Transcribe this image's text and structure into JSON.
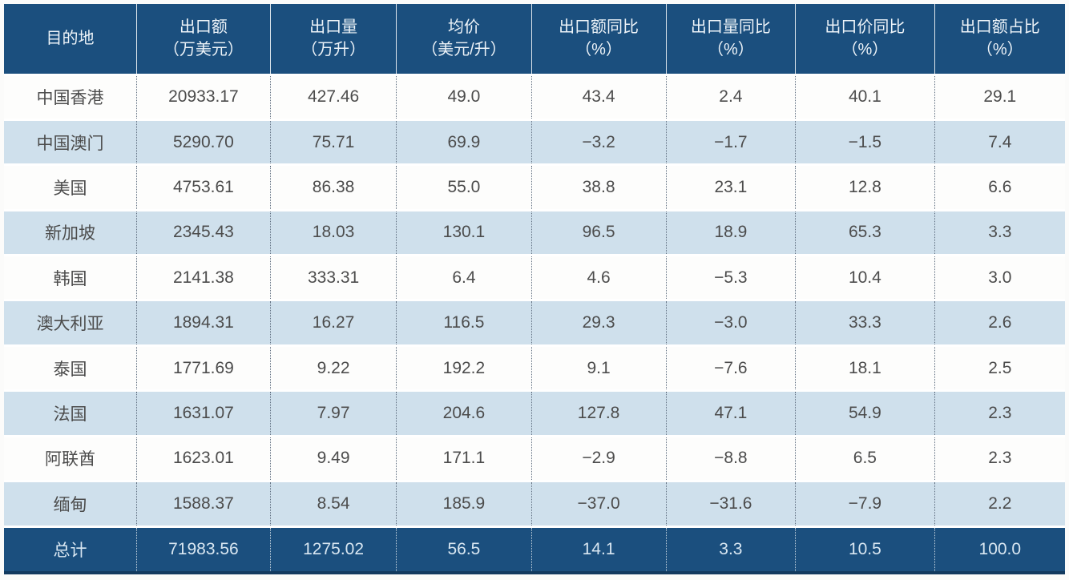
{
  "colors": {
    "header_bg": "#1b4f7e",
    "row_alt_bg": "#cfe0ec",
    "row_bg": "#fdfdfc",
    "body_text": "#4c4c4c",
    "header_text": "#eef4f9"
  },
  "chart_data": {
    "type": "table",
    "title": "",
    "columns": [
      {
        "label": "目的地",
        "unit": ""
      },
      {
        "label": "出口额",
        "unit": "（万美元）"
      },
      {
        "label": "出口量",
        "unit": "（万升）"
      },
      {
        "label": "均价",
        "unit": "（美元/升）"
      },
      {
        "label": "出口额同比",
        "unit": "（%）"
      },
      {
        "label": "出口量同比",
        "unit": "（%）"
      },
      {
        "label": "出口价同比",
        "unit": "（%）"
      },
      {
        "label": "出口额占比",
        "unit": "（%）"
      }
    ],
    "rows": [
      [
        "中国香港",
        "20933.17",
        "427.46",
        "49.0",
        "43.4",
        "2.4",
        "40.1",
        "29.1"
      ],
      [
        "中国澳门",
        "5290.70",
        "75.71",
        "69.9",
        "−3.2",
        "−1.7",
        "−1.5",
        "7.4"
      ],
      [
        "美国",
        "4753.61",
        "86.38",
        "55.0",
        "38.8",
        "23.1",
        "12.8",
        "6.6"
      ],
      [
        "新加坡",
        "2345.43",
        "18.03",
        "130.1",
        "96.5",
        "18.9",
        "65.3",
        "3.3"
      ],
      [
        "韩国",
        "2141.38",
        "333.31",
        "6.4",
        "4.6",
        "−5.3",
        "10.4",
        "3.0"
      ],
      [
        "澳大利亚",
        "1894.31",
        "16.27",
        "116.5",
        "29.3",
        "−3.0",
        "33.3",
        "2.6"
      ],
      [
        "泰国",
        "1771.69",
        "9.22",
        "192.2",
        "9.1",
        "−7.6",
        "18.1",
        "2.5"
      ],
      [
        "法国",
        "1631.07",
        "7.97",
        "204.6",
        "127.8",
        "47.1",
        "54.9",
        "2.3"
      ],
      [
        "阿联酋",
        "1623.01",
        "9.49",
        "171.1",
        "−2.9",
        "−8.8",
        "6.5",
        "2.3"
      ],
      [
        "缅甸",
        "1588.37",
        "8.54",
        "185.9",
        "−37.0",
        "−31.6",
        "−7.9",
        "2.2"
      ]
    ],
    "total_row": [
      "总计",
      "71983.56",
      "1275.02",
      "56.5",
      "14.1",
      "3.3",
      "10.5",
      "100.0"
    ]
  }
}
